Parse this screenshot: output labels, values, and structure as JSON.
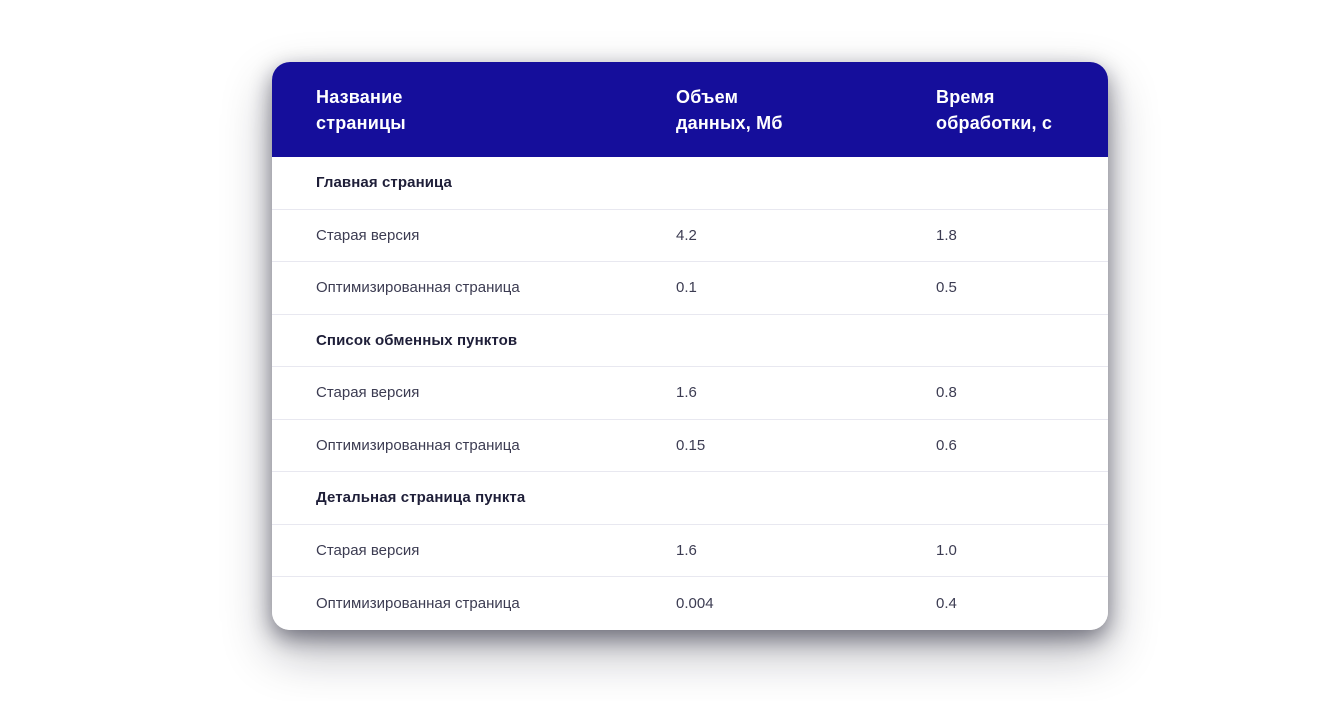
{
  "colors": {
    "header_bg": "#150E9B",
    "header_text": "#FFFFFF",
    "row_divider": "#E8E8F0",
    "section_title_text": "#1E1E38",
    "body_text": "#3C3C52",
    "page_bg": "#FFFFFF"
  },
  "chart_data": {
    "type": "table",
    "title": "",
    "columns": [
      "Название страницы",
      "Объем данных, Мб",
      "Время обработки, с"
    ],
    "sections": [
      {
        "title": "Главная страница",
        "rows": [
          {
            "name": "Старая версия",
            "volume": "4.2",
            "time": "1.8"
          },
          {
            "name": "Оптимизированная страница",
            "volume": "0.1",
            "time": "0.5"
          }
        ]
      },
      {
        "title": "Список обменных пунктов",
        "rows": [
          {
            "name": "Старая версия",
            "volume": "1.6",
            "time": "0.8"
          },
          {
            "name": "Оптимизированная страница",
            "volume": "0.15",
            "time": "0.6"
          }
        ]
      },
      {
        "title": "Детальная страница пункта",
        "rows": [
          {
            "name": "Старая версия",
            "volume": "1.6",
            "time": "1.0"
          },
          {
            "name": "Оптимизированная страница",
            "volume": "0.004",
            "time": "0.4"
          }
        ]
      }
    ]
  }
}
